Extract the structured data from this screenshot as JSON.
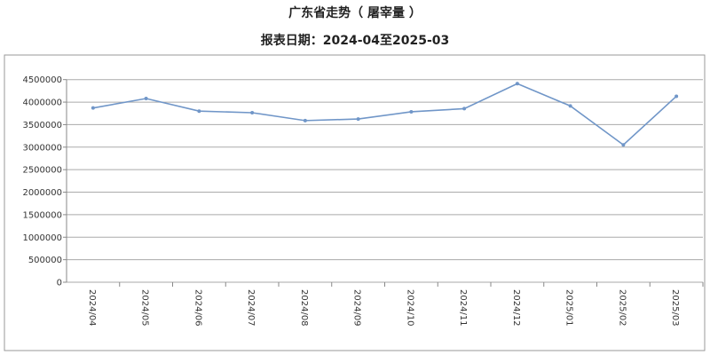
{
  "chart_data": {
    "type": "line",
    "title": "广东省走势（ 屠宰量 ）",
    "subtitle": "报表日期：2024-04至2025-03",
    "xlabel": "",
    "ylabel": "",
    "categories": [
      "2024/04",
      "2024/05",
      "2024/06",
      "2024/07",
      "2024/08",
      "2024/09",
      "2024/10",
      "2024/11",
      "2024/12",
      "2025/01",
      "2025/02",
      "2025/03"
    ],
    "series": [
      {
        "values": [
          3870000,
          4080000,
          3800000,
          3765000,
          3590000,
          3625000,
          3785000,
          3855000,
          4410000,
          3915000,
          3050000,
          4130000
        ],
        "color": "#7096c8"
      }
    ],
    "ylim": [
      0,
      4500000
    ],
    "yticks": [
      "0",
      "500000",
      "1000000",
      "1500000",
      "2000000",
      "2500000",
      "3000000",
      "3500000",
      "4000000",
      "4500000"
    ],
    "grid": true,
    "legend": "none"
  }
}
